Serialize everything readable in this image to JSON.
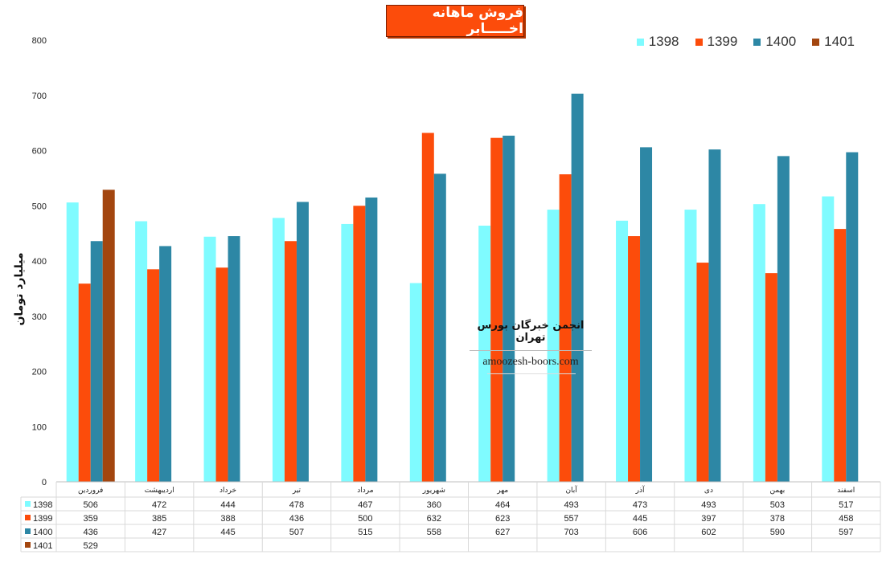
{
  "chart_data": {
    "type": "bar",
    "title": "فروش ماهانه اخـــــابر",
    "ylabel": "میلیارد تومان",
    "xlabel": "",
    "ylim": [
      0,
      800
    ],
    "yticks": [
      0,
      100,
      200,
      300,
      400,
      500,
      600,
      700,
      800
    ],
    "grid": false,
    "legend_position": "top-right",
    "categories": [
      "فروردین",
      "اردیبهشت",
      "خرداد",
      "تیر",
      "مرداد",
      "شهریور",
      "مهر",
      "آبان",
      "آذر",
      "دی",
      "بهمن",
      "اسفند"
    ],
    "series": [
      {
        "name": "1398",
        "color": "#7ffbff",
        "values": [
          506,
          472,
          444,
          478,
          467,
          360,
          464,
          493,
          473,
          493,
          503,
          517
        ]
      },
      {
        "name": "1399",
        "color": "#fc4c0b",
        "values": [
          359,
          385,
          388,
          436,
          500,
          632,
          623,
          557,
          445,
          397,
          378,
          458
        ]
      },
      {
        "name": "1400",
        "color": "#2d87a5",
        "values": [
          436,
          427,
          445,
          507,
          515,
          558,
          627,
          703,
          606,
          602,
          590,
          597
        ]
      },
      {
        "name": "1401",
        "color": "#a3460f",
        "values": [
          529,
          null,
          null,
          null,
          null,
          null,
          null,
          null,
          null,
          null,
          null,
          null
        ]
      }
    ]
  },
  "watermark": {
    "title": "انجمن خبرگان بورس تهران",
    "url": "amoozesh-boors.com"
  }
}
